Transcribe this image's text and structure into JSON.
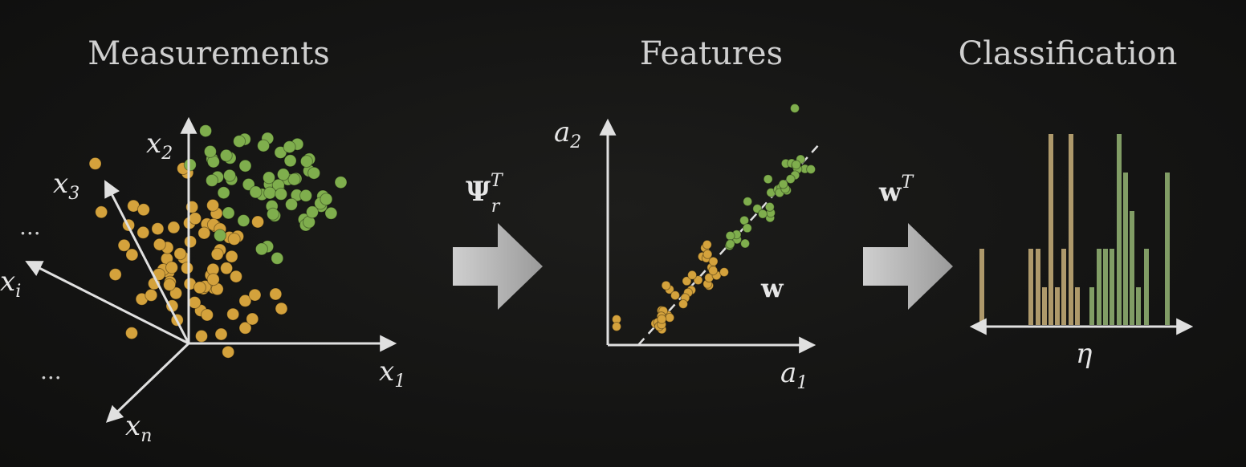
{
  "panels": {
    "measurements": {
      "title": "Measurements",
      "axes": {
        "x1": {
          "base": "x",
          "sub": "1"
        },
        "x2": {
          "base": "x",
          "sub": "2"
        },
        "x3": {
          "base": "x",
          "sub": "3"
        },
        "xi": {
          "base": "x",
          "sub": "i"
        },
        "xn": {
          "base": "x",
          "sub": "n"
        }
      },
      "ellipsis": "..."
    },
    "features": {
      "title": "Features",
      "axes": {
        "a1": {
          "base": "a",
          "sub": "1"
        },
        "a2": {
          "base": "a",
          "sub": "2"
        }
      },
      "vector_label": "w"
    },
    "classification": {
      "title": "Classification",
      "axis_label": "η"
    }
  },
  "transforms": {
    "psi": {
      "base": "Ψ",
      "sup": "T",
      "sub": "r"
    },
    "w": {
      "base": "w",
      "sup": "T"
    }
  },
  "colors": {
    "class_a": "#d4a23c",
    "class_b": "#7fae4d",
    "axis": "#e0e0e0",
    "hist_a": "#c9b07a",
    "hist_b": "#94b574"
  }
}
